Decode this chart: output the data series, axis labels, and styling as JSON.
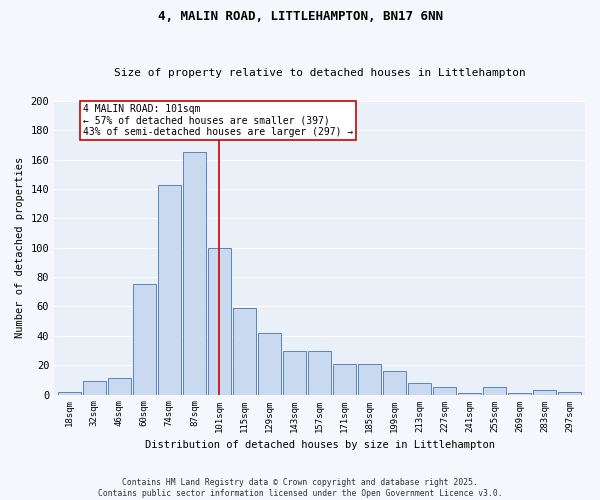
{
  "title1": "4, MALIN ROAD, LITTLEHAMPTON, BN17 6NN",
  "title2": "Size of property relative to detached houses in Littlehampton",
  "xlabel": "Distribution of detached houses by size in Littlehampton",
  "ylabel": "Number of detached properties",
  "bar_labels": [
    "18sqm",
    "32sqm",
    "46sqm",
    "60sqm",
    "74sqm",
    "87sqm",
    "101sqm",
    "115sqm",
    "129sqm",
    "143sqm",
    "157sqm",
    "171sqm",
    "185sqm",
    "199sqm",
    "213sqm",
    "227sqm",
    "241sqm",
    "255sqm",
    "269sqm",
    "283sqm",
    "297sqm"
  ],
  "bar_values": [
    2,
    9,
    11,
    75,
    143,
    165,
    100,
    59,
    42,
    30,
    30,
    21,
    21,
    16,
    8,
    5,
    1,
    5,
    1,
    3,
    2
  ],
  "bar_color": "#c9d9f0",
  "bar_edgecolor": "#5b83b8",
  "bg_color": "#eaf0f8",
  "grid_color": "#ffffff",
  "property_label": "4 MALIN ROAD: 101sqm",
  "annotation_line1": "← 57% of detached houses are smaller (397)",
  "annotation_line2": "43% of semi-detached houses are larger (297) →",
  "vline_color": "#cc0000",
  "vline_x_index": 6,
  "annotation_box_color": "#cc0000",
  "footer1": "Contains HM Land Registry data © Crown copyright and database right 2025.",
  "footer2": "Contains public sector information licensed under the Open Government Licence v3.0.",
  "ylim": [
    0,
    200
  ],
  "yticks": [
    0,
    20,
    40,
    60,
    80,
    100,
    120,
    140,
    160,
    180,
    200
  ]
}
